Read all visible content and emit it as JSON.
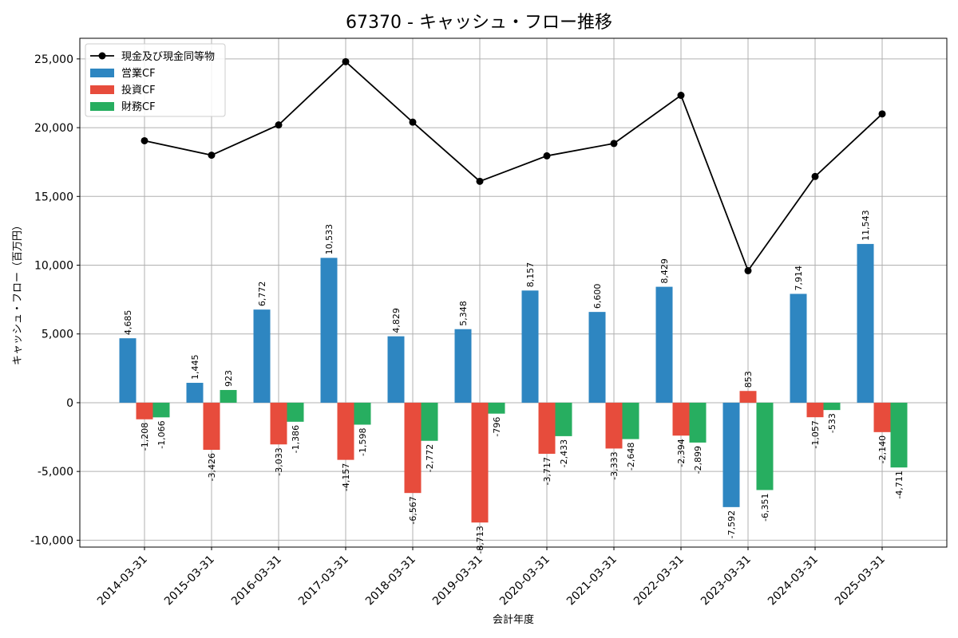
{
  "chart_data": {
    "type": "bar",
    "title": "67370 - キャッシュ・フロー推移",
    "xlabel": "会計年度",
    "ylabel": "キャッシュ・フロー（百万円）",
    "ylim": [
      -10500,
      26500
    ],
    "yticks": [
      -10000,
      -5000,
      0,
      5000,
      10000,
      15000,
      20000,
      25000
    ],
    "ytick_labels": [
      "-10,000",
      "-5,000",
      "0",
      "5,000",
      "10,000",
      "15,000",
      "20,000",
      "25,000"
    ],
    "grid": true,
    "legend_position": "top-left",
    "categories": [
      "2014-03-31",
      "2015-03-31",
      "2016-03-31",
      "2017-03-31",
      "2018-03-31",
      "2019-03-31",
      "2020-03-31",
      "2021-03-31",
      "2022-03-31",
      "2023-03-31",
      "2024-03-31",
      "2025-03-31"
    ],
    "series": [
      {
        "name": "営業CF",
        "kind": "bar",
        "color": "#2e86c1",
        "values": [
          4685,
          1445,
          6772,
          10533,
          4829,
          5348,
          8157,
          6600,
          8429,
          -7592,
          7914,
          11543
        ],
        "labels": [
          "4,685",
          "1,445",
          "6,772",
          "10,533",
          "4,829",
          "5,348",
          "8,157",
          "6,600",
          "8,429",
          "-7,592",
          "7,914",
          "11,543"
        ]
      },
      {
        "name": "投資CF",
        "kind": "bar",
        "color": "#e74c3c",
        "values": [
          -1208,
          -3426,
          -3033,
          -4157,
          -6567,
          -8713,
          -3717,
          -3333,
          -2394,
          853,
          -1057,
          -2140
        ],
        "labels": [
          "-1,208",
          "-3,426",
          "-3,033",
          "-4,157",
          "-6,567",
          "-8,713",
          "-3,717",
          "-3,333",
          "-2,394",
          "853",
          "-1,057",
          "-2,140"
        ]
      },
      {
        "name": "財務CF",
        "kind": "bar",
        "color": "#27ae60",
        "values": [
          -1066,
          923,
          -1386,
          -1598,
          -2772,
          -796,
          -2433,
          -2648,
          -2899,
          -6351,
          -533,
          -4711
        ],
        "labels": [
          "-1,066",
          "923",
          "-1,386",
          "-1,598",
          "-2,772",
          "-796",
          "-2,433",
          "-2,648",
          "-2,899",
          "-6,351",
          "-533",
          "-4,711"
        ]
      },
      {
        "name": "現金及び現金同等物",
        "kind": "line",
        "color": "#000000",
        "values": [
          19050,
          18000,
          20200,
          24800,
          20400,
          16100,
          17950,
          18850,
          22350,
          9600,
          16450,
          21000
        ]
      }
    ]
  }
}
